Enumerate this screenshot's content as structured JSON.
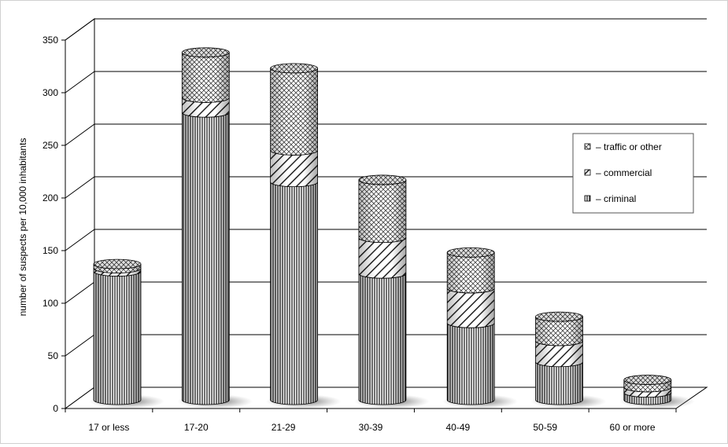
{
  "chart_data": {
    "type": "bar",
    "stacked": true,
    "three_d": true,
    "title": "",
    "xlabel": "",
    "ylabel": "number of suspects per 10,000 inhabitants",
    "ylim": [
      0,
      350
    ],
    "yticks": [
      "0",
      "50",
      "100",
      "150",
      "200",
      "250",
      "300",
      "350"
    ],
    "grid": true,
    "legend_position": "right",
    "categories": [
      "17 or less",
      "17-20",
      "21-29",
      "30-39",
      "40-49",
      "50-59",
      "60 or more"
    ],
    "series": [
      {
        "name": "criminal",
        "values": [
          122,
          273,
          207,
          120,
          73,
          36,
          7
        ],
        "pattern": "vertical-lines"
      },
      {
        "name": "commercial",
        "values": [
          3,
          14,
          30,
          34,
          33,
          20,
          5
        ],
        "pattern": "diagonal-hatch"
      },
      {
        "name": "traffic or other",
        "values": [
          4,
          43,
          78,
          55,
          34,
          23,
          7
        ],
        "pattern": "crosshatch"
      }
    ],
    "legend": [
      {
        "label": "– traffic or other",
        "series": "traffic or other"
      },
      {
        "label": "– commercial",
        "series": "commercial"
      },
      {
        "label": "– criminal",
        "series": "criminal"
      }
    ]
  }
}
